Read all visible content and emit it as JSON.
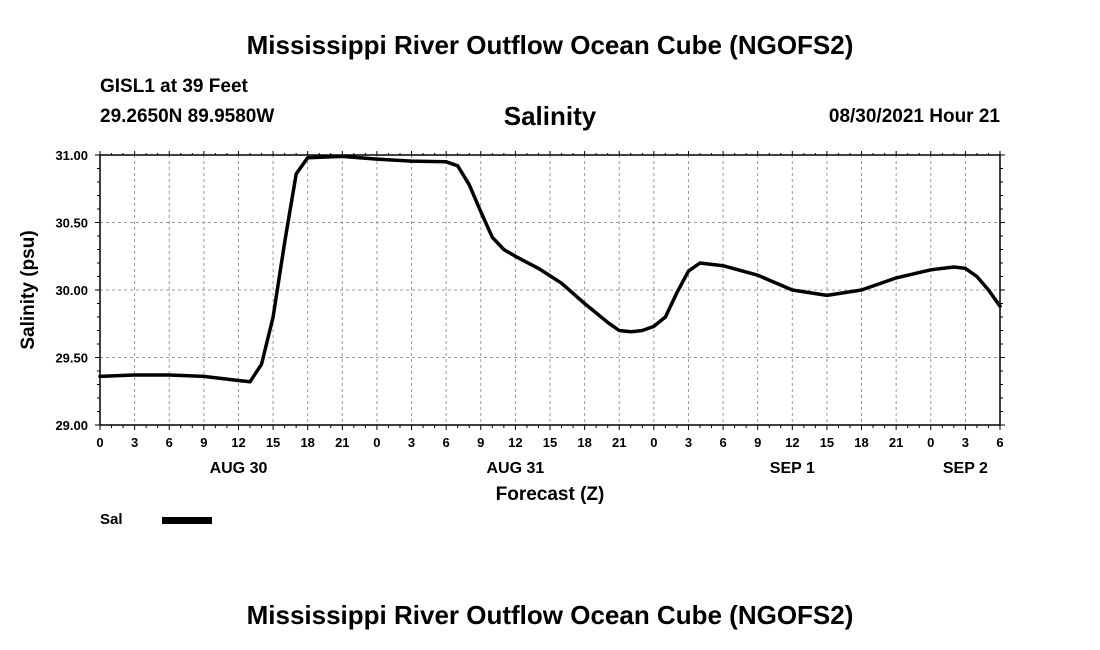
{
  "header": {
    "title": "Mississippi River Outflow Ocean Cube (NGOFS2)",
    "station": "GISL1 at 39 Feet",
    "coords": "29.2650N  89.9580W",
    "variable": "Salinity",
    "timestamp": "08/30/2021 Hour 21"
  },
  "footer": {
    "title": "Mississippi River Outflow Ocean Cube (NGOFS2)"
  },
  "legend": {
    "label": "Sal",
    "color": "#000000"
  },
  "chart_data": {
    "type": "line",
    "title": "Salinity",
    "xlabel": "Forecast (Z)",
    "ylabel": "Salinity (psu)",
    "xlim": [
      0,
      78
    ],
    "ylim": [
      29.0,
      31.0
    ],
    "yticks": [
      "29.00",
      "29.50",
      "30.00",
      "30.50",
      "31.00"
    ],
    "xtick_labels": [
      "0",
      "3",
      "6",
      "9",
      "12",
      "15",
      "18",
      "21",
      "0",
      "3",
      "6",
      "9",
      "12",
      "15",
      "18",
      "21",
      "0",
      "3",
      "6",
      "9",
      "12",
      "15",
      "18",
      "21",
      "0",
      "3",
      "6"
    ],
    "date_labels": [
      {
        "hour": 12,
        "label": "AUG 30"
      },
      {
        "hour": 36,
        "label": "AUG 31"
      },
      {
        "hour": 60,
        "label": "SEP 1"
      },
      {
        "hour": 75,
        "label": "SEP 2"
      }
    ],
    "grid": true,
    "series": [
      {
        "name": "Sal",
        "color": "#000000",
        "x": [
          0,
          3,
          6,
          9,
          12,
          13,
          14,
          15,
          16,
          17,
          18,
          21,
          24,
          27,
          30,
          31,
          32,
          33,
          34,
          35,
          36,
          38,
          40,
          42,
          44,
          45,
          46,
          47,
          48,
          49,
          50,
          51,
          52,
          54,
          57,
          60,
          63,
          66,
          69,
          72,
          74,
          75,
          76,
          77,
          78
        ],
        "y": [
          29.36,
          29.37,
          29.37,
          29.36,
          29.33,
          29.32,
          29.45,
          29.8,
          30.35,
          30.86,
          30.98,
          30.99,
          30.97,
          30.955,
          30.95,
          30.92,
          30.78,
          30.58,
          30.39,
          30.3,
          30.25,
          30.16,
          30.05,
          29.9,
          29.76,
          29.7,
          29.69,
          29.7,
          29.73,
          29.8,
          29.98,
          30.14,
          30.2,
          30.18,
          30.11,
          30.0,
          29.96,
          30.0,
          30.09,
          30.15,
          30.17,
          30.16,
          30.1,
          30.0,
          29.88
        ]
      }
    ]
  }
}
